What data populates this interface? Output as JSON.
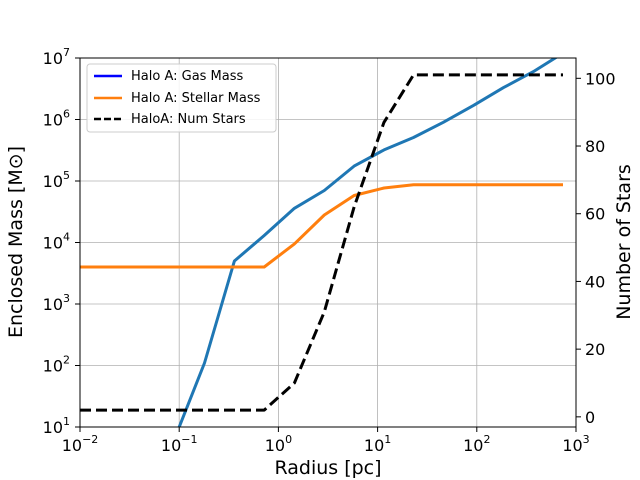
{
  "chart_data": {
    "type": "line",
    "xlabel": "Radius [pc]",
    "ylabel_left": "Enclosed Mass [M⊙]",
    "ylabel_right": "Number of Stars",
    "x_scale": "log",
    "y_left_scale": "log",
    "xlim": [
      0.01,
      1000
    ],
    "ylim_left": [
      10,
      10000000
    ],
    "ylim_right": [
      -3,
      106
    ],
    "grid": true,
    "legend_position": "top-left",
    "x_ticks": [
      {
        "value": 0.01,
        "base": "10",
        "exp": "−2"
      },
      {
        "value": 0.1,
        "base": "10",
        "exp": "−1"
      },
      {
        "value": 1,
        "base": "10",
        "exp": "0"
      },
      {
        "value": 10,
        "base": "10",
        "exp": "1"
      },
      {
        "value": 100,
        "base": "10",
        "exp": "2"
      },
      {
        "value": 1000,
        "base": "10",
        "exp": "3"
      }
    ],
    "y_left_ticks": [
      {
        "value": 10,
        "base": "10",
        "exp": "1"
      },
      {
        "value": 100,
        "base": "10",
        "exp": "2"
      },
      {
        "value": 1000,
        "base": "10",
        "exp": "3"
      },
      {
        "value": 10000,
        "base": "10",
        "exp": "4"
      },
      {
        "value": 100000,
        "base": "10",
        "exp": "5"
      },
      {
        "value": 1000000,
        "base": "10",
        "exp": "6"
      },
      {
        "value": 10000000,
        "base": "10",
        "exp": "7"
      }
    ],
    "y_right_ticks": [
      0,
      20,
      40,
      60,
      80,
      100
    ],
    "legend": [
      {
        "label": "Halo A: Gas Mass",
        "color": "#0000ff",
        "dash": "solid"
      },
      {
        "label": "Halo A: Stellar Mass",
        "color": "#ff7f0e",
        "dash": "solid"
      },
      {
        "label": "HaloA: Num Stars",
        "color": "#000000",
        "dash": "dashed"
      }
    ],
    "series": [
      {
        "axis": "left",
        "color": "#1f77b4",
        "x": [
          0.1,
          0.18,
          0.36,
          0.72,
          1.45,
          2.9,
          5.8,
          11.6,
          23,
          46,
          93,
          186,
          372,
          740
        ],
        "y": [
          10,
          110,
          5000,
          13000,
          36000,
          70000,
          175000,
          320000,
          510000,
          900000,
          1700000,
          3300000,
          6000000,
          12000000
        ]
      },
      {
        "axis": "left",
        "color": "#ff7f0e",
        "x": [
          0.01,
          0.72,
          1.45,
          2.9,
          5.8,
          11.6,
          23,
          46,
          93,
          186,
          372,
          740
        ],
        "y": [
          4000,
          4000,
          9500,
          28000,
          58000,
          77000,
          87000,
          87000,
          87000,
          87000,
          87000,
          87000
        ]
      },
      {
        "axis": "right",
        "color": "#000000",
        "dash": "dashed",
        "x": [
          0.01,
          0.72,
          1.45,
          2.9,
          5.8,
          11.6,
          23,
          46,
          93,
          186,
          372,
          740
        ],
        "y": [
          2,
          2,
          10,
          31,
          62,
          87,
          101,
          101,
          101,
          101,
          101,
          101
        ]
      }
    ]
  }
}
